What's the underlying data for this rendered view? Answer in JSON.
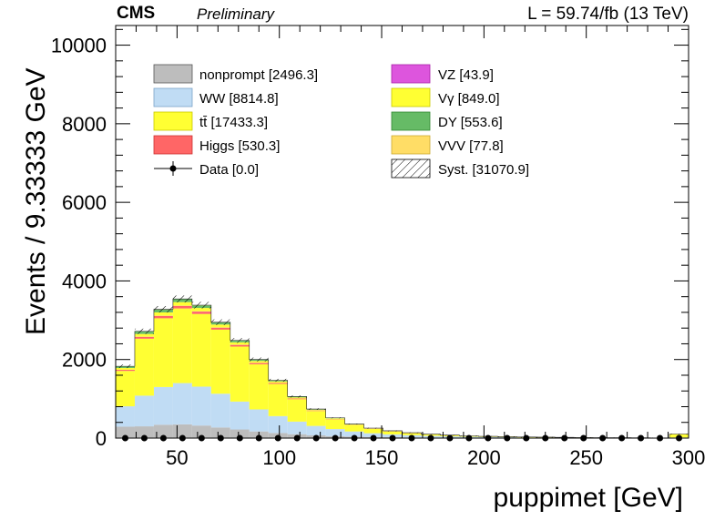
{
  "header": {
    "cms": "CMS",
    "preliminary": "Preliminary",
    "lumi": "L = 59.74/fb (13 TeV)"
  },
  "chart_data": {
    "type": "bar",
    "stacked": true,
    "title": "",
    "xlabel": "puppimet [GeV]",
    "ylabel": "Events / 9.33333 GeV",
    "xlim": [
      20,
      300
    ],
    "ylim": [
      0,
      10500
    ],
    "bin_width": 9.33333,
    "x_ticks": [
      50,
      100,
      150,
      200,
      250,
      300
    ],
    "y_ticks": [
      0,
      2000,
      4000,
      6000,
      8000,
      10000
    ],
    "bin_edges": [
      20,
      29.33,
      38.67,
      48,
      57.33,
      66.67,
      76,
      85.33,
      94.67,
      104,
      113.33,
      122.67,
      132,
      141.33,
      150.67,
      160,
      169.33,
      178.67,
      188,
      197.33,
      206.67,
      216,
      225.33,
      234.67,
      244,
      253.33,
      262.67,
      272,
      281.33,
      290.67,
      300
    ],
    "series": [
      {
        "name": "nonprompt [2496.3]",
        "color": "#bdbdbd",
        "values": [
          290,
          300,
          340,
          350,
          320,
          270,
          220,
          170,
          130,
          100,
          70,
          50,
          40,
          30,
          25,
          20,
          15,
          12,
          10,
          8,
          6,
          5,
          4,
          3,
          3,
          2,
          2,
          2,
          1,
          5
        ]
      },
      {
        "name": "WW [8814.8]",
        "color": "#c0dcf4",
        "values": [
          520,
          780,
          960,
          1050,
          990,
          860,
          710,
          560,
          430,
          320,
          240,
          180,
          130,
          95,
          70,
          55,
          42,
          32,
          25,
          20,
          16,
          12,
          10,
          8,
          6,
          5,
          4,
          3,
          3,
          12
        ]
      },
      {
        "name": "tt̄ [17433.3]",
        "color": "#ffff33",
        "values": [
          900,
          1450,
          1750,
          1900,
          1850,
          1630,
          1400,
          1150,
          820,
          570,
          380,
          250,
          165,
          110,
          75,
          50,
          35,
          25,
          18,
          13,
          10,
          8,
          6,
          5,
          4,
          3,
          3,
          2,
          2,
          80
        ]
      },
      {
        "name": "Higgs [530.3]",
        "color": "#ff6666",
        "values": [
          28,
          46,
          58,
          62,
          58,
          49,
          40,
          31,
          23,
          17,
          12,
          9,
          6,
          5,
          4,
          3,
          2,
          2,
          1,
          1,
          1,
          1,
          1,
          0,
          0,
          0,
          0,
          0,
          0,
          2
        ]
      },
      {
        "name": "VZ [43.9]",
        "color": "#dd55dd",
        "values": [
          2,
          3,
          4,
          5,
          5,
          4,
          4,
          3,
          3,
          2,
          2,
          1,
          1,
          1,
          1,
          1,
          0,
          0,
          0,
          0,
          0,
          0,
          0,
          0,
          0,
          0,
          0,
          0,
          0,
          0
        ]
      },
      {
        "name": "Vγ [849.0]",
        "color": "#ffff33",
        "values": [
          45,
          72,
          88,
          95,
          90,
          78,
          64,
          50,
          38,
          28,
          20,
          14,
          10,
          7,
          5,
          4,
          3,
          2,
          2,
          1,
          1,
          1,
          1,
          1,
          0,
          0,
          0,
          0,
          0,
          3
        ]
      },
      {
        "name": "DY [553.6]",
        "color": "#66bb66",
        "values": [
          40,
          62,
          72,
          72,
          64,
          52,
          42,
          32,
          24,
          18,
          13,
          9,
          7,
          5,
          4,
          3,
          2,
          2,
          1,
          1,
          1,
          1,
          1,
          0,
          0,
          0,
          0,
          0,
          0,
          1
        ]
      },
      {
        "name": "VVV [77.8]",
        "color": "#ffdd66",
        "values": [
          3,
          5,
          6,
          7,
          7,
          6,
          6,
          5,
          4,
          4,
          3,
          3,
          2,
          2,
          2,
          2,
          1,
          1,
          1,
          1,
          1,
          1,
          1,
          1,
          1,
          1,
          0,
          0,
          0,
          1
        ]
      }
    ],
    "data": {
      "name": "Data [0.0]",
      "values": [
        0,
        0,
        0,
        0,
        0,
        0,
        0,
        0,
        0,
        0,
        0,
        0,
        0,
        0,
        0,
        0,
        0,
        0,
        0,
        0,
        0,
        0,
        0,
        0,
        0,
        0,
        0,
        0,
        0,
        0
      ]
    },
    "syst_label": "Syst. [31070.9]",
    "legend": {
      "left": [
        "nonprompt [2496.3]",
        "WW [8814.8]",
        "tt̄ [17433.3]",
        "Higgs [530.3]",
        "Data [0.0]"
      ],
      "right": [
        "VZ [43.9]",
        "Vγ [849.0]",
        "DY [553.6]",
        "VVV [77.8]",
        "Syst. [31070.9]"
      ]
    }
  }
}
